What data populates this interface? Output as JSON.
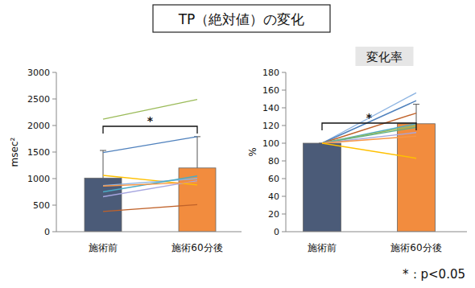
{
  "title": "TP（絶対値）の変化",
  "footnote": "*：p<0.05",
  "chart_data": [
    {
      "type": "bar",
      "ylabel": "msec²",
      "categories": [
        "施術前",
        "施術60分後"
      ],
      "values": [
        1010,
        1200
      ],
      "errors": [
        520,
        590
      ],
      "colors": [
        "#4b5b78",
        "#f28c3e"
      ],
      "ylim": [
        0,
        3000
      ],
      "yticks": [
        0,
        500,
        1000,
        1500,
        2000,
        2500,
        3000
      ],
      "annotation": "*",
      "series": [
        {
          "type": "line",
          "color": "#9bbb59",
          "values": [
            2120,
            2490
          ]
        },
        {
          "type": "line",
          "color": "#4f81bd",
          "values": [
            1490,
            1790
          ]
        },
        {
          "type": "line",
          "color": "#ffc000",
          "values": [
            1060,
            880
          ]
        },
        {
          "type": "line",
          "color": "#8db4e2",
          "values": [
            870,
            1000
          ]
        },
        {
          "type": "line",
          "color": "#4bacc6",
          "values": [
            750,
            1050
          ]
        },
        {
          "type": "line",
          "color": "#a6a6e0",
          "values": [
            660,
            960
          ]
        },
        {
          "type": "line",
          "color": "#f79646",
          "values": [
            860,
            930
          ]
        },
        {
          "type": "line",
          "color": "#c0622a",
          "values": [
            380,
            510
          ]
        }
      ]
    },
    {
      "type": "bar",
      "title": "変化率",
      "ylabel": "%",
      "categories": [
        "施術前",
        "施術60分後"
      ],
      "values": [
        100,
        122
      ],
      "errors": [
        0,
        22
      ],
      "colors": [
        "#4b5b78",
        "#f28c3e"
      ],
      "ylim": [
        0,
        180
      ],
      "yticks": [
        0,
        20,
        40,
        60,
        80,
        100,
        120,
        140,
        160,
        180
      ],
      "annotation": "*",
      "series": [
        {
          "type": "line",
          "color": "#8db4e2",
          "values": [
            100,
            157
          ]
        },
        {
          "type": "line",
          "color": "#4f81bd",
          "values": [
            100,
            148
          ]
        },
        {
          "type": "line",
          "color": "#c0622a",
          "values": [
            100,
            134
          ]
        },
        {
          "type": "line",
          "color": "#4bacc6",
          "values": [
            100,
            122
          ]
        },
        {
          "type": "line",
          "color": "#9bbb59",
          "values": [
            100,
            120
          ]
        },
        {
          "type": "line",
          "color": "#5fb08a",
          "values": [
            100,
            118
          ]
        },
        {
          "type": "line",
          "color": "#a6a6e0",
          "values": [
            100,
            112
          ]
        },
        {
          "type": "line",
          "color": "#f79646",
          "values": [
            100,
            108
          ]
        },
        {
          "type": "line",
          "color": "#ffc000",
          "values": [
            100,
            83
          ]
        }
      ]
    }
  ]
}
